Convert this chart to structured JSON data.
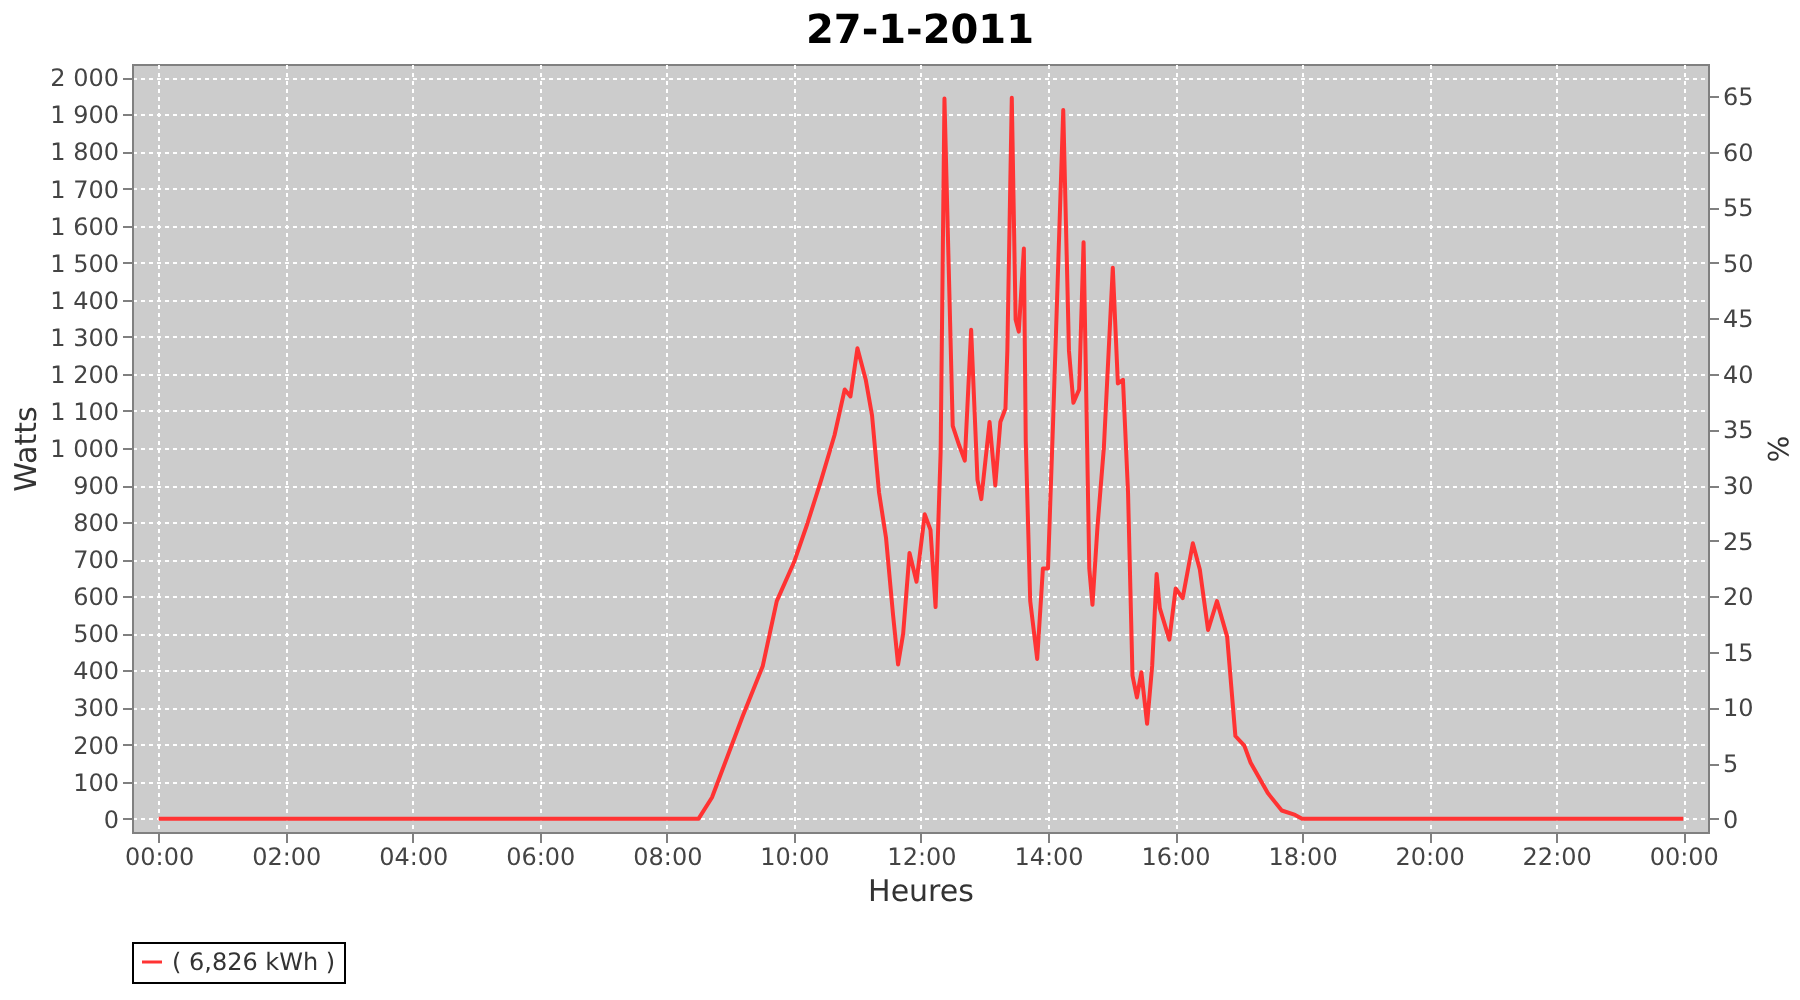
{
  "chart_data": {
    "type": "line",
    "title": "27-1-2011",
    "xlabel": "Heures",
    "ylabel": "Watts",
    "y2label": "%",
    "x": [
      0,
      8.5,
      8.71,
      9.19,
      9.51,
      9.73,
      10.0,
      10.21,
      10.43,
      10.64,
      10.8,
      10.89,
      11.0,
      11.13,
      11.23,
      11.34,
      11.45,
      11.56,
      11.64,
      11.72,
      11.82,
      11.93,
      12.06,
      12.15,
      12.23,
      12.31,
      12.37,
      12.5,
      12.6,
      12.69,
      12.79,
      12.89,
      12.95,
      13.08,
      13.17,
      13.25,
      13.33,
      13.36,
      13.43,
      13.49,
      13.54,
      13.62,
      13.65,
      13.72,
      13.83,
      13.92,
      14.0,
      14.08,
      14.24,
      14.33,
      14.4,
      14.49,
      14.56,
      14.65,
      14.7,
      14.78,
      14.88,
      15.02,
      15.1,
      15.18,
      15.26,
      15.33,
      15.4,
      15.47,
      15.56,
      15.64,
      15.71,
      15.76,
      15.91,
      16.01,
      16.12,
      16.28,
      16.39,
      16.52,
      16.66,
      16.82,
      16.95,
      17.09,
      17.19,
      17.46,
      17.68,
      17.89,
      18.0,
      24
    ],
    "series": [
      {
        "name": "( 6,826 kWh )",
        "color": "#ff3333",
        "values": [
          0,
          0,
          57,
          275,
          412,
          587,
          691,
          795,
          914,
          1035,
          1158,
          1139,
          1269,
          1185,
          1088,
          880,
          758,
          551,
          416,
          499,
          717,
          639,
          821,
          779,
          571,
          989,
          1943,
          1060,
          1008,
          966,
          1319,
          914,
          862,
          1070,
          899,
          1070,
          1106,
          1262,
          1945,
          1347,
          1314,
          1538,
          1018,
          587,
          431,
          675,
          675,
          1070,
          1912,
          1262,
          1122,
          1158,
          1555,
          675,
          577,
          790,
          1002,
          1486,
          1174,
          1184,
          880,
          386,
          327,
          395,
          256,
          412,
          660,
          568,
          483,
          621,
          595,
          743,
          672,
          509,
          587,
          491,
          223,
          197,
          151,
          69,
          22,
          10,
          0,
          0
        ]
      }
    ],
    "xlim": [
      -0.42,
      24.39
    ],
    "xticks": [
      {
        "value": 0,
        "label": "00:00"
      },
      {
        "value": 2,
        "label": "02:00"
      },
      {
        "value": 4,
        "label": "04:00"
      },
      {
        "value": 6,
        "label": "06:00"
      },
      {
        "value": 8,
        "label": "08:00"
      },
      {
        "value": 10,
        "label": "10:00"
      },
      {
        "value": 12,
        "label": "12:00"
      },
      {
        "value": 14,
        "label": "14:00"
      },
      {
        "value": 16,
        "label": "16:00"
      },
      {
        "value": 18,
        "label": "18:00"
      },
      {
        "value": 20,
        "label": "20:00"
      },
      {
        "value": 22,
        "label": "22:00"
      },
      {
        "value": 24,
        "label": "00:00"
      }
    ],
    "ylim": [
      -36,
      2036
    ],
    "yticks": [
      0,
      100,
      200,
      300,
      400,
      500,
      600,
      700,
      800,
      900,
      {
        "value": 1000,
        "label": "1 000"
      },
      {
        "value": 1100,
        "label": "1 100"
      },
      {
        "value": 1200,
        "label": "1 200"
      },
      {
        "value": 1300,
        "label": "1 300"
      },
      {
        "value": 1400,
        "label": "1 400"
      },
      {
        "value": 1500,
        "label": "1 500"
      },
      {
        "value": 1600,
        "label": "1 600"
      },
      {
        "value": 1700,
        "label": "1 700"
      },
      {
        "value": 1800,
        "label": "1 800"
      },
      {
        "value": 1900,
        "label": "1 900"
      },
      {
        "value": 2000,
        "label": "2 000"
      }
    ],
    "y2lim": [
      -1.2,
      67.87
    ],
    "y2ticks": [
      0,
      5,
      10,
      15,
      20,
      25,
      30,
      35,
      40,
      45,
      50,
      55,
      60,
      65
    ],
    "grid": true,
    "legend": "bottom",
    "marker": "none",
    "line_style": "solid"
  }
}
